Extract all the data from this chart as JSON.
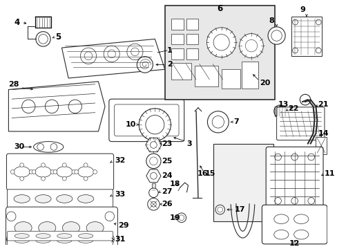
{
  "bg_color": "#ffffff",
  "fig_width": 4.89,
  "fig_height": 3.6,
  "dpi": 100,
  "gray": "#2a2a2a",
  "light_gray": "#cccccc",
  "box6_fill": "#e8e8e8",
  "box16_fill": "#f0f0f0"
}
